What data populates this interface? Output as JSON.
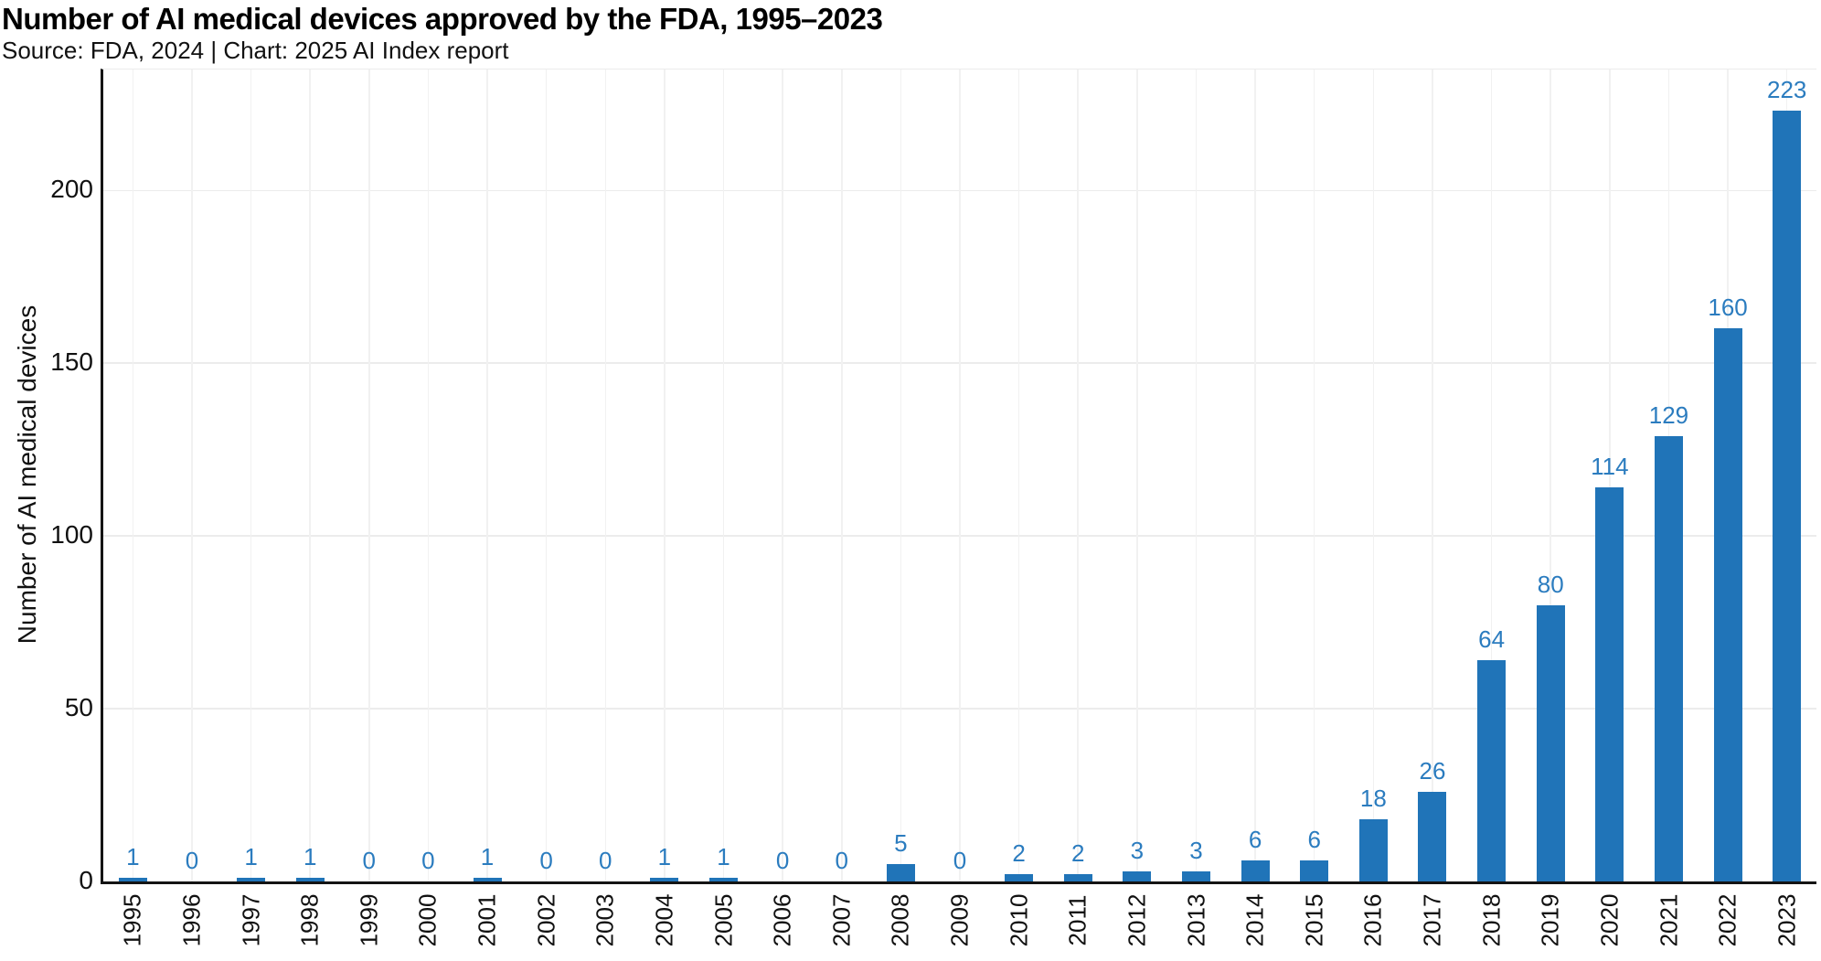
{
  "header": {
    "title": "Number of AI medical devices approved by the FDA, 1995–2023",
    "subtitle": "Source: FDA, 2024 | Chart: 2025 AI Index report"
  },
  "chart_data": {
    "type": "bar",
    "title": "Number of AI medical devices approved by the FDA, 1995–2023",
    "categories": [
      "1995",
      "1996",
      "1997",
      "1998",
      "1999",
      "2000",
      "2001",
      "2002",
      "2003",
      "2004",
      "2005",
      "2006",
      "2007",
      "2008",
      "2009",
      "2010",
      "2011",
      "2012",
      "2013",
      "2014",
      "2015",
      "2016",
      "2017",
      "2018",
      "2019",
      "2020",
      "2021",
      "2022",
      "2023"
    ],
    "values": [
      1,
      0,
      1,
      1,
      0,
      0,
      1,
      0,
      0,
      1,
      1,
      0,
      0,
      5,
      0,
      2,
      2,
      3,
      3,
      6,
      6,
      18,
      26,
      64,
      80,
      114,
      129,
      160,
      223
    ],
    "xlabel": "",
    "ylabel": "Number of AI medical devices",
    "yticks": [
      0,
      50,
      100,
      150,
      200
    ],
    "ylim": [
      0,
      235
    ],
    "grid": true,
    "legend": "none",
    "data_labels": true,
    "colors": {
      "bar": "#2074b8",
      "value_label": "#2b7cbf",
      "axis": "#141414",
      "grid_h": "#ececec",
      "grid_v": "#f1f1f1",
      "text": "#111111"
    }
  }
}
